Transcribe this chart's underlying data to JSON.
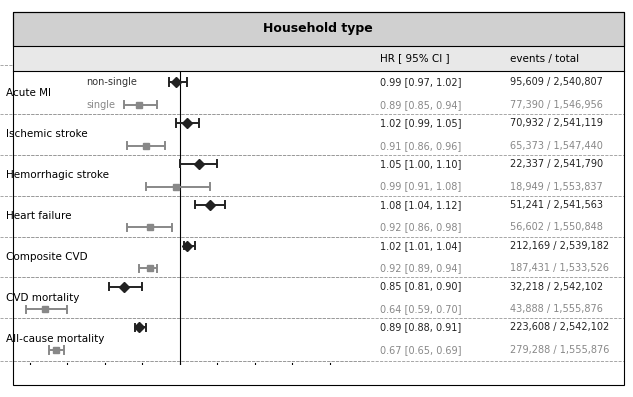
{
  "title": "Household type",
  "xlabel": "HR [95% CI]",
  "col_header_hr": "HR [ 95% CI ]",
  "col_header_events": "events / total",
  "xlim": [
    0.52,
    1.5
  ],
  "xticks": [
    0.6,
    0.7,
    0.8,
    0.9,
    1.0,
    1.1,
    1.2,
    1.3,
    1.4
  ],
  "vline_x": 1.0,
  "rows": [
    {
      "sub_label": "non-single",
      "hr": 0.99,
      "lo": 0.97,
      "hi": 1.02,
      "hr_text": "0.99 [0.97, 1.02]",
      "events_text": "95,609 / 2,540,807",
      "color": "#222222",
      "marker": "D",
      "markersize": 5
    },
    {
      "sub_label": "single",
      "hr": 0.89,
      "lo": 0.85,
      "hi": 0.94,
      "hr_text": "0.89 [0.85, 0.94]",
      "events_text": "77,390 / 1,546,956",
      "color": "#888888",
      "marker": "s",
      "markersize": 5
    },
    {
      "sub_label": "",
      "hr": 1.02,
      "lo": 0.99,
      "hi": 1.05,
      "hr_text": "1.02 [0.99, 1.05]",
      "events_text": "70,932 / 2,541,119",
      "color": "#222222",
      "marker": "D",
      "markersize": 5
    },
    {
      "sub_label": "",
      "hr": 0.91,
      "lo": 0.86,
      "hi": 0.96,
      "hr_text": "0.91 [0.86, 0.96]",
      "events_text": "65,373 / 1,547,440",
      "color": "#888888",
      "marker": "s",
      "markersize": 5
    },
    {
      "sub_label": "",
      "hr": 1.05,
      "lo": 1.0,
      "hi": 1.1,
      "hr_text": "1.05 [1.00, 1.10]",
      "events_text": "22,337 / 2,541,790",
      "color": "#222222",
      "marker": "D",
      "markersize": 5
    },
    {
      "sub_label": "",
      "hr": 0.99,
      "lo": 0.91,
      "hi": 1.08,
      "hr_text": "0.99 [0.91, 1.08]",
      "events_text": "18,949 / 1,553,837",
      "color": "#888888",
      "marker": "s",
      "markersize": 5
    },
    {
      "sub_label": "",
      "hr": 1.08,
      "lo": 1.04,
      "hi": 1.12,
      "hr_text": "1.08 [1.04, 1.12]",
      "events_text": "51,241 / 2,541,563",
      "color": "#222222",
      "marker": "D",
      "markersize": 5
    },
    {
      "sub_label": "",
      "hr": 0.92,
      "lo": 0.86,
      "hi": 0.98,
      "hr_text": "0.92 [0.86, 0.98]",
      "events_text": "56,602 / 1,550,848",
      "color": "#888888",
      "marker": "s",
      "markersize": 5
    },
    {
      "sub_label": "",
      "hr": 1.02,
      "lo": 1.01,
      "hi": 1.04,
      "hr_text": "1.02 [1.01, 1.04]",
      "events_text": "212,169 / 2,539,182",
      "color": "#222222",
      "marker": "D",
      "markersize": 5
    },
    {
      "sub_label": "",
      "hr": 0.92,
      "lo": 0.89,
      "hi": 0.94,
      "hr_text": "0.92 [0.89, 0.94]",
      "events_text": "187,431 / 1,533,526",
      "color": "#888888",
      "marker": "s",
      "markersize": 5
    },
    {
      "sub_label": "",
      "hr": 0.85,
      "lo": 0.81,
      "hi": 0.9,
      "hr_text": "0.85 [0.81, 0.90]",
      "events_text": "32,218 / 2,542,102",
      "color": "#222222",
      "marker": "D",
      "markersize": 5
    },
    {
      "sub_label": "",
      "hr": 0.64,
      "lo": 0.59,
      "hi": 0.7,
      "hr_text": "0.64 [0.59, 0.70]",
      "events_text": "43,888 / 1,555,876",
      "color": "#888888",
      "marker": "s",
      "markersize": 5
    },
    {
      "sub_label": "",
      "hr": 0.89,
      "lo": 0.88,
      "hi": 0.91,
      "hr_text": "0.89 [0.88, 0.91]",
      "events_text": "223,608 / 2,542,102",
      "color": "#222222",
      "marker": "D",
      "markersize": 5
    },
    {
      "sub_label": "",
      "hr": 0.67,
      "lo": 0.65,
      "hi": 0.69,
      "hr_text": "0.67 [0.65, 0.69]",
      "events_text": "279,288 / 1,555,876",
      "color": "#888888",
      "marker": "s",
      "markersize": 5
    }
  ],
  "group_labels": [
    "Acute MI",
    "Ischemic stroke",
    "Hemorrhagic stroke",
    "Heart failure",
    "Composite CVD",
    "CVD mortality",
    "All-cause mortality"
  ],
  "bg_color_title": "#d0d0d0",
  "bg_color_header": "#e8e8e8"
}
